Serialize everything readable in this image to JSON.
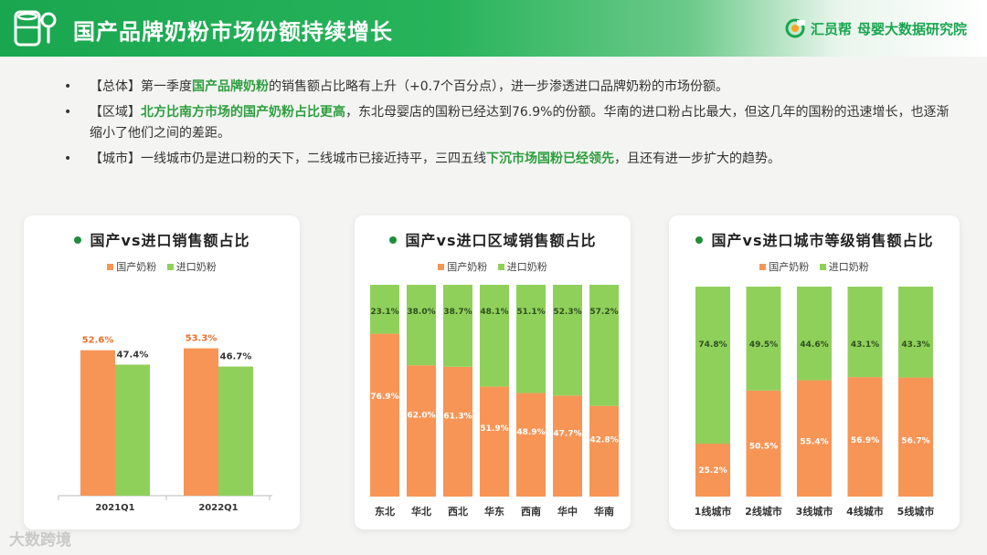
{
  "header": {
    "title": "国产品牌奶粉市场份额持续增长",
    "brand_name": "汇员帮",
    "brand_sub": "母婴大数据研究院"
  },
  "bullets": [
    {
      "parts": [
        {
          "text": "【总体】第一季度",
          "hl": false
        },
        {
          "text": "国产品牌奶粉",
          "hl": true
        },
        {
          "text": "的销售额占比略有上升（+0.7个百分点），进一步渗透进口品牌奶粉的市场份额。",
          "hl": false
        }
      ]
    },
    {
      "parts": [
        {
          "text": "【区域】",
          "hl": false
        },
        {
          "text": "北方比南方市场的国产奶粉占比更高",
          "hl": true
        },
        {
          "text": "，东北母婴店的国粉已经达到76.9%的份额。华南的进口粉占比最大，但这几年的国粉的迅速增长，也逐渐缩小了他们之间的差距。",
          "hl": false
        }
      ]
    },
    {
      "parts": [
        {
          "text": "【城市】一线城市仍是进口粉的天下，二线城市已接近持平，三四五线",
          "hl": false
        },
        {
          "text": "下沉市场国粉已经领先",
          "hl": true
        },
        {
          "text": "，且还有进一步扩大的趋势。",
          "hl": false
        }
      ]
    }
  ],
  "bullet_marker": "•",
  "legend": {
    "domestic": "国产奶粉",
    "imported": "进口奶粉"
  },
  "colors": {
    "domestic": "#f79556",
    "imported": "#8fd05a",
    "domestic_label": "#e8702a"
  },
  "footer_logo": "大数跨境",
  "chart_data": [
    {
      "type": "bar",
      "title": "国产vs进口销售额占比",
      "categories": [
        "2021Q1",
        "2022Q1"
      ],
      "series": [
        {
          "name": "国产奶粉",
          "values": [
            52.6,
            53.3
          ]
        },
        {
          "name": "进口奶粉",
          "values": [
            47.4,
            46.7
          ]
        }
      ],
      "ylim": [
        0,
        70
      ],
      "value_suffix": "%"
    },
    {
      "type": "bar",
      "stacked": true,
      "title": "国产vs进口区域销售额占比",
      "categories": [
        "东北",
        "华北",
        "西北",
        "华东",
        "西南",
        "华中",
        "华南"
      ],
      "series": [
        {
          "name": "国产奶粉",
          "values": [
            76.9,
            62.0,
            61.3,
            51.9,
            48.9,
            47.7,
            42.8
          ]
        },
        {
          "name": "进口奶粉",
          "values": [
            23.1,
            38.0,
            38.7,
            48.1,
            51.1,
            52.3,
            57.2
          ]
        }
      ],
      "ylim": [
        0,
        100
      ],
      "value_suffix": "%"
    },
    {
      "type": "bar",
      "stacked": true,
      "title": "国产vs进口城市等级销售额占比",
      "categories": [
        "1线城市",
        "2线城市",
        "3线城市",
        "4线城市",
        "5线城市"
      ],
      "series": [
        {
          "name": "国产奶粉",
          "values": [
            25.2,
            50.5,
            55.4,
            56.9,
            56.7
          ]
        },
        {
          "name": "进口奶粉",
          "values": [
            74.8,
            49.5,
            44.6,
            43.1,
            43.3
          ]
        }
      ],
      "ylim": [
        0,
        100
      ],
      "value_suffix": "%"
    }
  ]
}
